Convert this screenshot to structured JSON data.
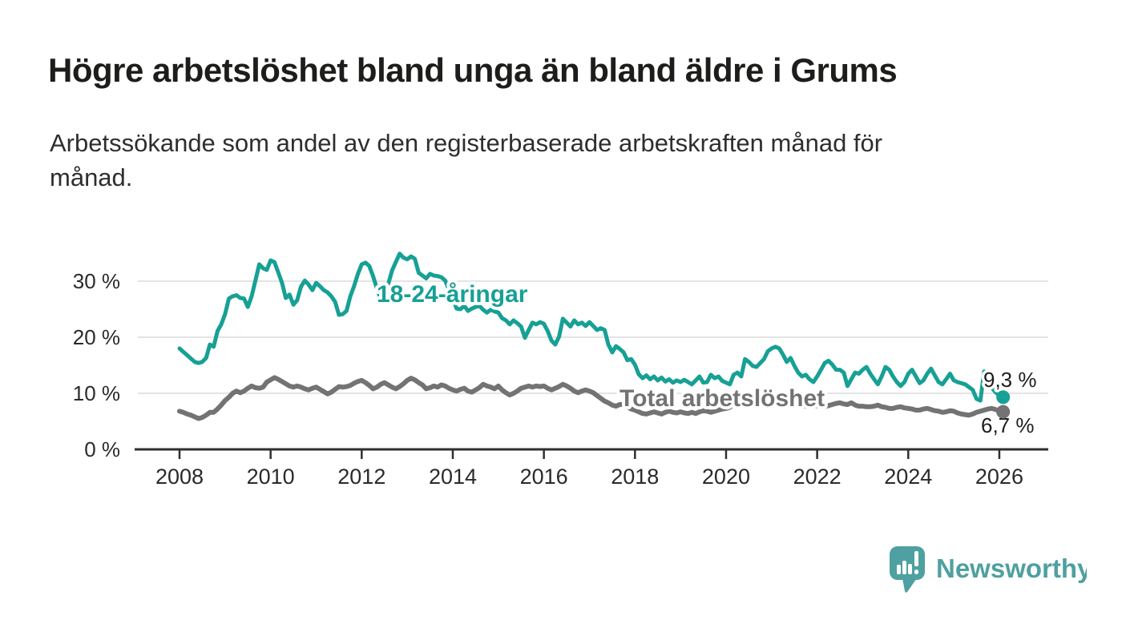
{
  "page": {
    "title": "Högre arbetslöshet bland unga än bland äldre i Grums",
    "subtitle_lines": [
      "Arbetssökande som andel av den registerbaserade arbetskraften månad för",
      "månad."
    ]
  },
  "chart_data": {
    "type": "line",
    "title": "Högre arbetslöshet bland unga än bland äldre i Grums",
    "subtitle": "Arbetssökande som andel av den registerbaserade arbetskraften månad för månad.",
    "grid": true,
    "legend_position": "inline-labels",
    "x_axis": {
      "unit": "year-month",
      "range": [
        2007.1,
        2027.1
      ],
      "tick_years": [
        2008,
        2010,
        2012,
        2014,
        2016,
        2018,
        2020,
        2022,
        2024,
        2026
      ]
    },
    "y_axis": {
      "unit": "percent",
      "range": [
        0,
        37
      ],
      "tick_values": [
        0,
        10,
        20,
        30
      ],
      "tick_labels": [
        "0 %",
        "10 %",
        "20 %",
        "30 %"
      ]
    },
    "series": [
      {
        "name": "18-24-åringar",
        "slug": "youth",
        "color": "#17a095",
        "line_width": 5,
        "end_label": "9,3 %",
        "end_value": 9.3,
        "start_year": 2008,
        "start_month": 1,
        "monthly_values": [
          18.0,
          17.4,
          16.8,
          16.2,
          15.6,
          15.4,
          15.6,
          16.3,
          18.7,
          18.3,
          21.1,
          22.3,
          24.1,
          26.9,
          27.3,
          27.5,
          27.0,
          26.9,
          25.4,
          27.3,
          30.1,
          33.0,
          32.3,
          32.0,
          33.7,
          33.4,
          31.6,
          29.7,
          27.0,
          27.6,
          25.8,
          26.6,
          29.0,
          30.1,
          29.4,
          28.4,
          29.7,
          29.1,
          28.4,
          28.0,
          27.3,
          26.3,
          24.0,
          24.1,
          24.7,
          27.3,
          29.1,
          31.3,
          33.0,
          33.3,
          32.7,
          30.9,
          28.7,
          26.8,
          28.0,
          29.5,
          31.9,
          33.4,
          34.9,
          34.2,
          33.9,
          34.4,
          34.0,
          31.5,
          31.0,
          30.5,
          31.3,
          31.0,
          30.9,
          30.7,
          30.1,
          28.5,
          26.9,
          25.1,
          25.0,
          25.6,
          24.7,
          25.1,
          25.4,
          25.6,
          24.9,
          24.4,
          24.9,
          24.6,
          24.4,
          23.4,
          23.0,
          22.3,
          23.0,
          22.5,
          21.9,
          19.9,
          21.3,
          22.6,
          22.3,
          22.7,
          22.4,
          21.1,
          19.4,
          18.7,
          20.1,
          23.3,
          22.6,
          21.9,
          23.0,
          22.3,
          22.6,
          22.0,
          22.7,
          22.0,
          21.3,
          21.6,
          21.3,
          18.7,
          17.3,
          18.4,
          17.9,
          17.3,
          15.9,
          16.1,
          15.1,
          13.4,
          12.7,
          13.2,
          12.5,
          13.0,
          12.3,
          12.8,
          12.1,
          12.5,
          11.9,
          12.3,
          12.0,
          12.4,
          12.0,
          11.6,
          12.3,
          13.0,
          11.9,
          12.0,
          13.3,
          12.7,
          13.0,
          12.2,
          11.9,
          11.6,
          13.3,
          13.7,
          13.0,
          16.1,
          15.6,
          14.9,
          14.7,
          15.4,
          16.1,
          17.5,
          18.0,
          18.3,
          18.0,
          16.9,
          15.6,
          16.3,
          14.9,
          13.7,
          13.0,
          13.3,
          12.5,
          12.0,
          13.0,
          14.2,
          15.4,
          15.8,
          15.1,
          14.2,
          14.2,
          13.7,
          11.3,
          12.5,
          13.7,
          13.5,
          14.2,
          14.7,
          13.5,
          12.5,
          11.6,
          13.0,
          14.7,
          14.2,
          13.0,
          12.0,
          11.3,
          12.0,
          13.5,
          14.2,
          13.0,
          11.8,
          12.3,
          13.5,
          14.4,
          13.2,
          12.0,
          11.6,
          12.5,
          13.5,
          12.3,
          12.0,
          11.8,
          11.6,
          11.1,
          10.6,
          9.0,
          8.7,
          13.9,
          12.5,
          11.0,
          10.2,
          9.6,
          9.3
        ]
      },
      {
        "name": "Total arbetslöshet",
        "slug": "total",
        "color": "#737373",
        "line_width": 6,
        "end_label": "6,7 %",
        "end_value": 6.7,
        "start_year": 2008,
        "start_month": 1,
        "monthly_values": [
          6.8,
          6.6,
          6.3,
          6.1,
          5.8,
          5.5,
          5.7,
          6.1,
          6.6,
          6.6,
          7.2,
          7.9,
          8.7,
          9.3,
          10.0,
          10.4,
          10.1,
          10.4,
          10.9,
          11.3,
          11.0,
          10.9,
          11.1,
          12.0,
          12.4,
          12.8,
          12.5,
          12.1,
          11.7,
          11.3,
          11.1,
          11.3,
          11.1,
          10.8,
          10.6,
          10.9,
          11.1,
          10.7,
          10.3,
          9.9,
          10.2,
          10.7,
          11.2,
          11.1,
          11.2,
          11.4,
          11.8,
          12.1,
          12.3,
          11.9,
          11.4,
          10.8,
          11.1,
          11.6,
          11.9,
          11.5,
          11.1,
          10.8,
          11.2,
          11.7,
          12.3,
          12.7,
          12.4,
          11.9,
          11.5,
          10.8,
          11.0,
          11.3,
          11.1,
          11.5,
          11.3,
          10.9,
          10.6,
          10.4,
          10.7,
          10.9,
          10.4,
          10.2,
          10.6,
          11.0,
          11.6,
          11.3,
          11.1,
          10.8,
          11.3,
          10.6,
          10.1,
          9.7,
          10.0,
          10.4,
          10.9,
          11.1,
          11.3,
          11.1,
          11.3,
          11.2,
          11.3,
          10.9,
          10.6,
          10.9,
          11.2,
          11.6,
          11.3,
          10.9,
          10.4,
          10.1,
          10.4,
          10.6,
          10.4,
          10.1,
          9.6,
          9.1,
          8.6,
          8.3,
          7.9,
          7.7,
          8.0,
          8.0,
          7.6,
          7.2,
          7.0,
          6.7,
          6.4,
          6.3,
          6.5,
          6.7,
          6.5,
          6.3,
          6.6,
          6.8,
          6.6,
          6.5,
          6.7,
          6.5,
          6.4,
          6.6,
          6.4,
          6.7,
          6.9,
          6.8,
          6.6,
          6.8,
          7.0,
          7.2,
          7.3,
          7.5,
          8.2,
          8.8,
          9.1,
          9.3,
          9.2,
          9.0,
          9.0,
          8.9,
          8.8,
          8.8,
          8.8,
          8.7,
          8.5,
          8.4,
          8.3,
          8.1,
          8.0,
          7.9,
          7.8,
          7.7,
          7.6,
          7.7,
          7.8,
          7.7,
          7.6,
          7.8,
          8.0,
          8.2,
          8.3,
          8.1,
          8.0,
          8.3,
          7.9,
          7.7,
          7.7,
          7.6,
          7.6,
          7.7,
          7.9,
          7.6,
          7.5,
          7.3,
          7.3,
          7.5,
          7.6,
          7.4,
          7.3,
          7.2,
          7.0,
          7.0,
          7.2,
          7.3,
          7.1,
          6.9,
          6.8,
          6.6,
          6.7,
          6.9,
          6.8,
          6.5,
          6.3,
          6.2,
          6.1,
          6.3,
          6.6,
          6.8,
          7.0,
          7.2,
          7.3,
          7.1,
          6.9,
          6.7
        ]
      }
    ]
  },
  "logo": {
    "text": "Newsworthy",
    "color": "#4fa0a0",
    "icon": "newsworthy-speech-bubble-bar-chart-icon"
  }
}
